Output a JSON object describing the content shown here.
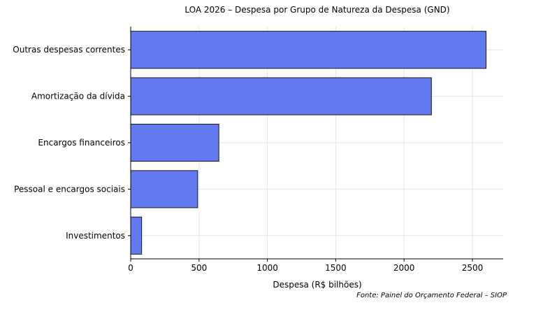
{
  "chart_data": {
    "type": "bar",
    "orientation": "horizontal",
    "title": "LOA 2026 – Despesa por Grupo de Natureza da Despesa (GND)",
    "xlabel": "Despesa (R$ bilhões)",
    "ylabel": "",
    "categories": [
      "Outras despesas correntes",
      "Amortização da dívida",
      "Encargos financeiros",
      "Pessoal e encargos sociais",
      "Investimentos"
    ],
    "values": [
      2600,
      2200,
      645,
      490,
      80
    ],
    "xlim": [
      0,
      2725
    ],
    "xticks": [
      "0",
      "500",
      "1000",
      "1500",
      "2000",
      "2500"
    ],
    "grid": true,
    "bar_color": "#6379f0",
    "edge_color": "#1a1a1a",
    "source": "Fonte: Painel do Orçamento Federal – SIOP"
  }
}
